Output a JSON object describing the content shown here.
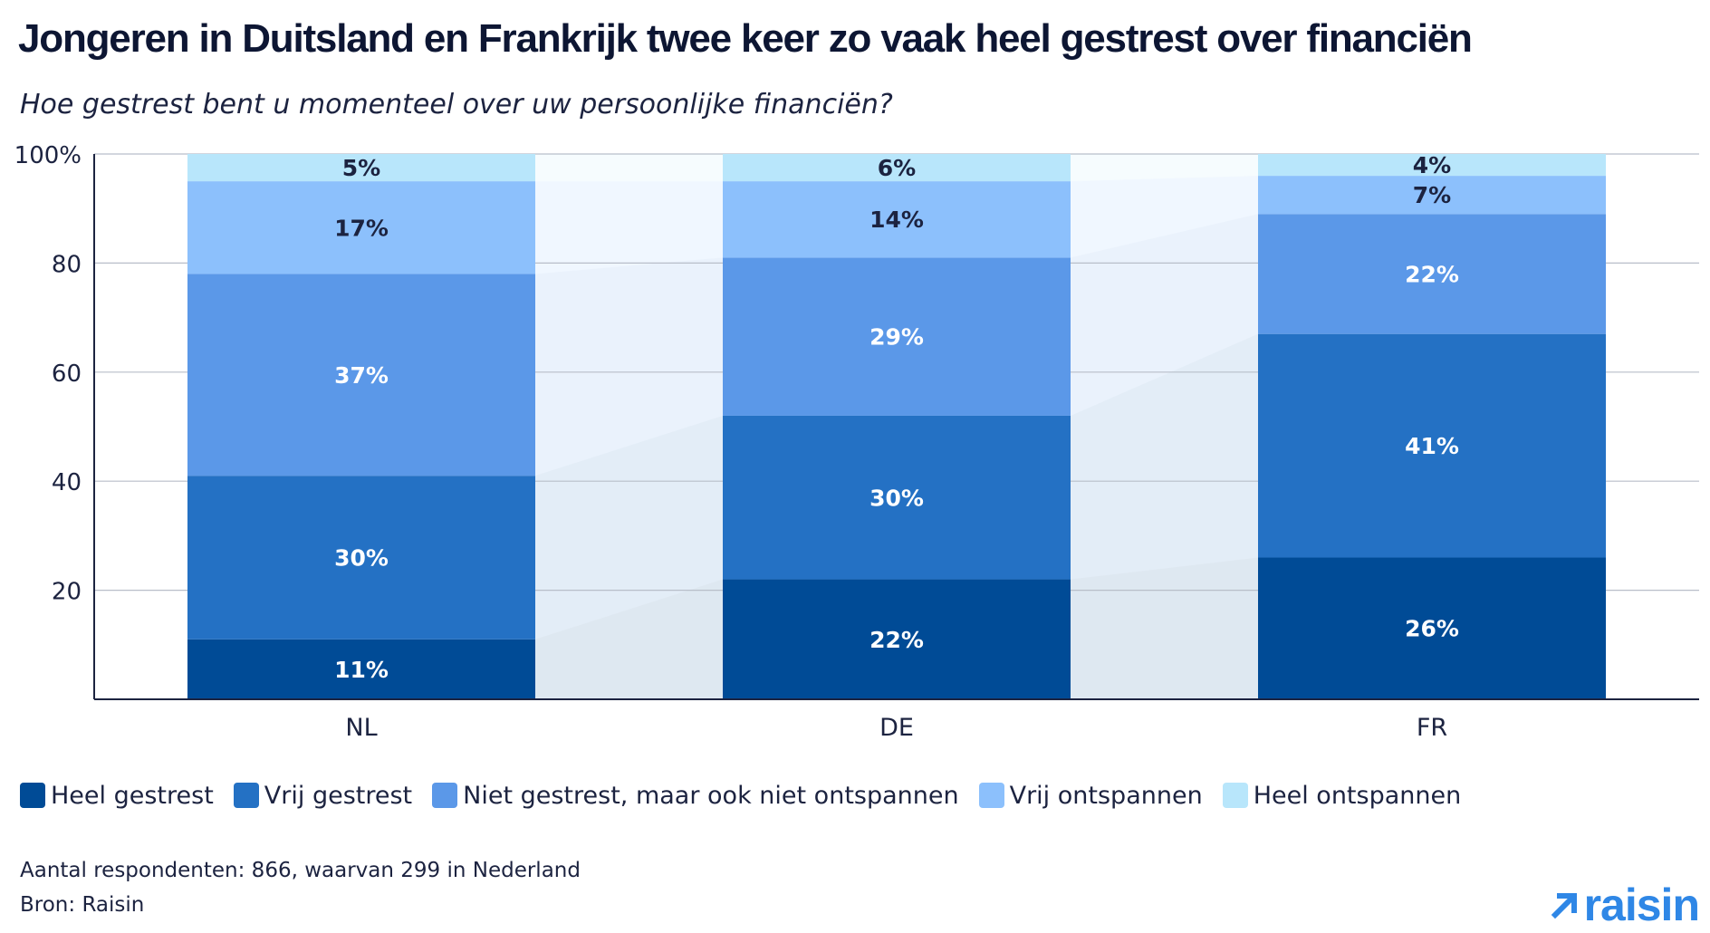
{
  "title": "Jongeren in Duitsland en Frankrijk twee keer zo vaak heel gestrest over financiën",
  "subtitle": "Hoe gestrest bent u momenteel over uw persoonlijke financiën?",
  "footnote": "Aantal respondenten: 866, waarvan 299 in Nederland",
  "source": "Bron: Raisin",
  "logo_text": "raisin",
  "colors": {
    "heel_gestrest": "#004b96",
    "vrij_gestrest": "#2471c4",
    "niet_gestrest": "#5b98e8",
    "vrij_ontspannen": "#8cc0fc",
    "heel_ontspannen": "#b8e6fb",
    "logo": "#2f87e6"
  },
  "chart_data": {
    "type": "bar",
    "stacked": true,
    "categories": [
      "NL",
      "DE",
      "FR"
    ],
    "ylim": [
      0,
      100
    ],
    "yticks": [
      20,
      40,
      60,
      80,
      100
    ],
    "ytick_labels": [
      "20",
      "40",
      "60",
      "80",
      "100%"
    ],
    "grid": true,
    "legend_position": "bottom",
    "series": [
      {
        "name": "Heel gestrest",
        "values": [
          11,
          22,
          26
        ],
        "labels": [
          "11%",
          "22%",
          "26%"
        ],
        "color": "#004b96"
      },
      {
        "name": "Vrij gestrest",
        "values": [
          30,
          30,
          41
        ],
        "labels": [
          "30%",
          "30%",
          "41%"
        ],
        "color": "#2471c4"
      },
      {
        "name": "Niet gestrest, maar ook niet ontspannen",
        "values": [
          37,
          29,
          22
        ],
        "labels": [
          "37%",
          "29%",
          "22%"
        ],
        "color": "#5b98e8"
      },
      {
        "name": "Vrij ontspannen",
        "values": [
          17,
          14,
          7
        ],
        "labels": [
          "17%",
          "14%",
          "7%"
        ],
        "color": "#8cc0fc"
      },
      {
        "name": "Heel ontspannen",
        "values": [
          5,
          6,
          4
        ],
        "labels": [
          "5%",
          "6%",
          "4%"
        ],
        "color": "#b8e6fb"
      }
    ]
  }
}
